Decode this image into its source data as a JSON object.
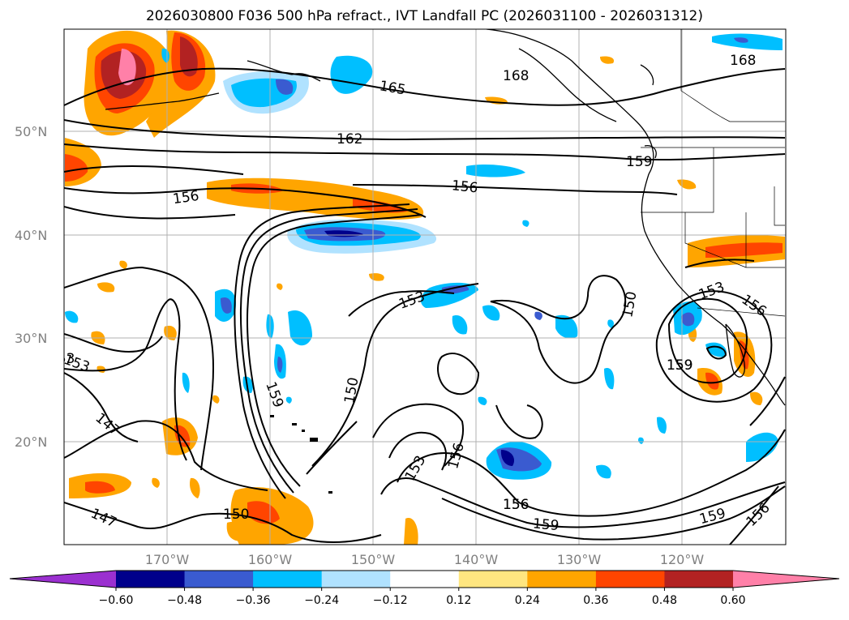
{
  "title": "2026030800 F036 500 hPa refract., IVT Landfall PC (2026031100 - 2026031312)",
  "axes": {
    "lat_labels": [
      "50°N",
      "40°N",
      "30°N",
      "20°N"
    ],
    "lon_labels": [
      "170°W",
      "160°W",
      "150°W",
      "140°W",
      "130°W",
      "120°W"
    ]
  },
  "contour_labels": [
    "165",
    "168",
    "168",
    "162",
    "159",
    "156",
    "156",
    "153",
    "153",
    "150",
    "150",
    "159",
    "153",
    "156",
    "159",
    "156",
    "153",
    "147",
    "147",
    "159",
    "150",
    "156",
    "153",
    "156",
    "159",
    "159",
    "156"
  ],
  "colorbar": {
    "ticks": [
      "−0.60",
      "−0.48",
      "−0.36",
      "−0.24",
      "−0.12",
      "0.12",
      "0.24",
      "0.36",
      "0.48",
      "0.60"
    ],
    "colors": [
      "#9b30d0",
      "#00008b",
      "#3a5bd0",
      "#00bfff",
      "#b0e2ff",
      "#ffffff",
      "#ffe680",
      "#ffa500",
      "#ff4500",
      "#b22222",
      "#ff80a8"
    ]
  }
}
